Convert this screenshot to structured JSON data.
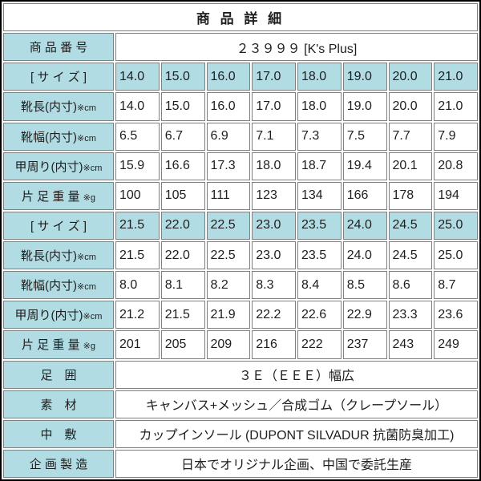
{
  "title": "商 品 詳 細",
  "product_number": {
    "label": "商 品 番 号",
    "value": "２３９９９ [K's Plus]"
  },
  "size_table": {
    "blocks": [
      {
        "size_row": {
          "label": "[ サ イ ズ ]",
          "values": [
            "14.0",
            "15.0",
            "16.0",
            "17.0",
            "18.0",
            "19.0",
            "20.0",
            "21.0"
          ]
        },
        "rows": [
          {
            "label": "靴長(内寸)",
            "suffix": "※cm",
            "values": [
              "14.0",
              "15.0",
              "16.0",
              "17.0",
              "18.0",
              "19.0",
              "20.0",
              "21.0"
            ]
          },
          {
            "label": "靴幅(内寸)",
            "suffix": "※cm",
            "values": [
              "6.5",
              "6.7",
              "6.9",
              "7.1",
              "7.3",
              "7.5",
              "7.7",
              "7.9"
            ]
          },
          {
            "label": "甲周り(内寸)",
            "suffix": "※cm",
            "values": [
              "15.9",
              "16.6",
              "17.3",
              "18.0",
              "18.7",
              "19.4",
              "20.1",
              "20.8"
            ]
          },
          {
            "label": "片 足 重 量 ",
            "suffix": "※g",
            "values": [
              "100",
              "105",
              "111",
              "123",
              "134",
              "166",
              "178",
              "194"
            ]
          }
        ]
      },
      {
        "size_row": {
          "label": "[ サ イ ズ ]",
          "values": [
            "21.5",
            "22.0",
            "22.5",
            "23.0",
            "23.5",
            "24.0",
            "24.5",
            "25.0"
          ]
        },
        "rows": [
          {
            "label": "靴長(内寸)",
            "suffix": "※cm",
            "values": [
              "21.5",
              "22.0",
              "22.5",
              "23.0",
              "23.5",
              "24.0",
              "24.5",
              "25.0"
            ]
          },
          {
            "label": "靴幅(内寸)",
            "suffix": "※cm",
            "values": [
              "8.0",
              "8.1",
              "8.2",
              "8.3",
              "8.4",
              "8.5",
              "8.6",
              "8.7"
            ]
          },
          {
            "label": "甲周り(内寸)",
            "suffix": "※cm",
            "values": [
              "21.2",
              "21.5",
              "21.9",
              "22.2",
              "22.6",
              "22.9",
              "23.3",
              "23.6"
            ]
          },
          {
            "label": "片 足 重 量 ",
            "suffix": "※g",
            "values": [
              "201",
              "205",
              "209",
              "216",
              "222",
              "237",
              "243",
              "249"
            ]
          }
        ]
      }
    ]
  },
  "info_rows": [
    {
      "label": "足　囲",
      "value": "３Ｅ（ＥＥＥ）幅広"
    },
    {
      "label": "素　材",
      "value": "キャンバス+メッシュ／合成ゴム（クレープソール）"
    },
    {
      "label": "中　敷",
      "value": "カップインソール (DUPONT SILVADUR 抗菌防臭加工)"
    },
    {
      "label": "企 画 製 造",
      "value": "日本でオリジナル企画、中国で委託生産"
    }
  ],
  "colors": {
    "label_bg": "#b2dce3",
    "cell_border": "#7f7f7f",
    "outer_border": "#000000",
    "text": "#1e1e1e",
    "cell_bg": "#ffffff"
  }
}
